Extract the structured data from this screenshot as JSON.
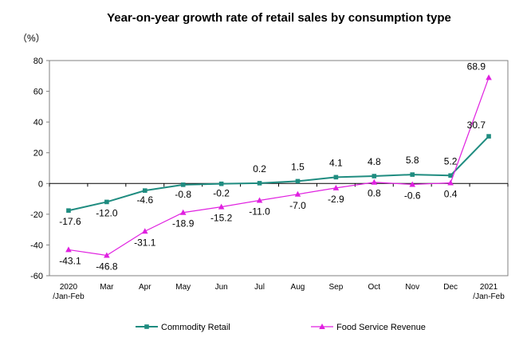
{
  "chart_data": {
    "type": "line",
    "title": "Year-on-year growth rate of retail sales by consumption type",
    "unit_label": "（%）",
    "ylim": [
      -60,
      80
    ],
    "yticks": [
      -60,
      -40,
      -20,
      0,
      20,
      40,
      60,
      80
    ],
    "grid": false,
    "legend_position": "bottom",
    "categories": [
      [
        "2020",
        "/Jan-Feb"
      ],
      [
        "Mar"
      ],
      [
        "Apr"
      ],
      [
        "May"
      ],
      [
        "Jun"
      ],
      [
        "Jul"
      ],
      [
        "Aug"
      ],
      [
        "Sep"
      ],
      [
        "Oct"
      ],
      [
        "Nov"
      ],
      [
        "Dec"
      ],
      [
        "2021",
        "/Jan-Feb"
      ]
    ],
    "series": [
      {
        "name": "Commodity Retail",
        "color": "#1f8c80",
        "marker": "square",
        "values": [
          -17.6,
          -12.0,
          -4.6,
          -0.8,
          -0.2,
          0.2,
          1.5,
          4.1,
          4.8,
          5.8,
          5.2,
          30.7
        ],
        "labels": [
          "-17.6",
          "-12.0",
          "-4.6",
          "-0.8",
          "-0.2",
          "0.2",
          "1.5",
          "4.1",
          "4.8",
          "5.8",
          "5.2",
          "30.7"
        ]
      },
      {
        "name": "Food Service Revenue",
        "color": "#e020e0",
        "marker": "triangle",
        "values": [
          -43.1,
          -46.8,
          -31.1,
          -18.9,
          -15.2,
          -11.0,
          -7.0,
          -2.9,
          0.8,
          -0.6,
          0.4,
          68.9
        ],
        "labels": [
          "-43.1",
          "-46.8",
          "-31.1",
          "-18.9",
          "-15.2",
          "-11.0",
          "-7.0",
          "-2.9",
          "0.8",
          "-0.6",
          "0.4",
          "68.9"
        ]
      }
    ]
  }
}
